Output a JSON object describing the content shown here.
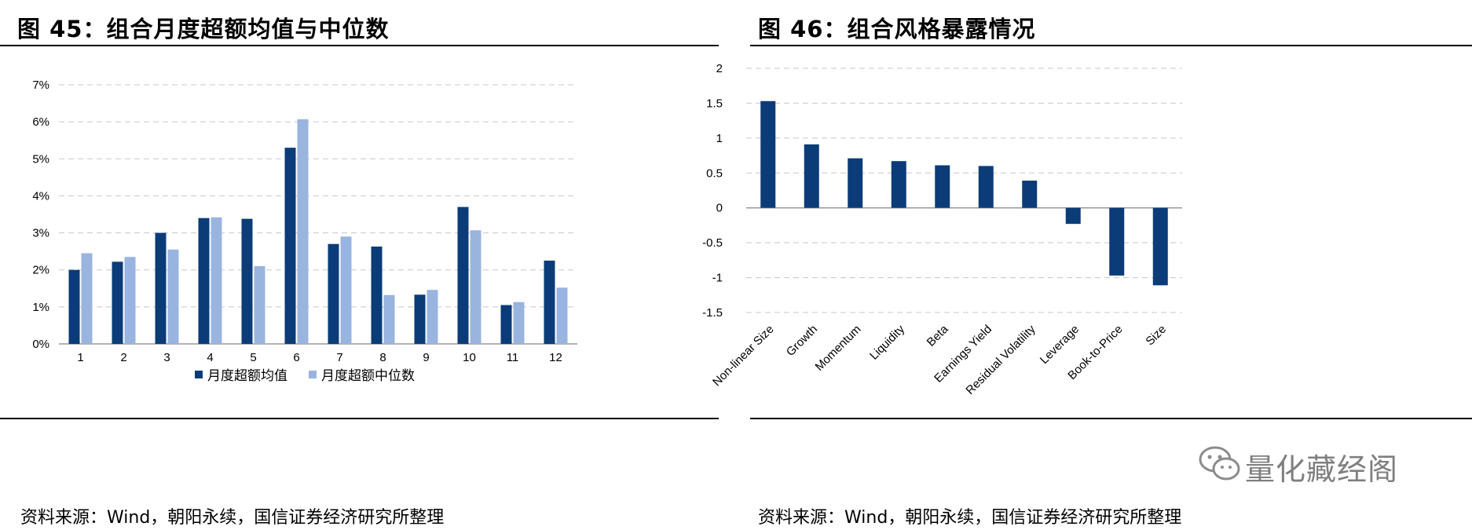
{
  "left": {
    "title": "图 45：组合月度超额均值与中位数",
    "source": "资料来源：Wind，朝阳永续，国信证券经济研究所整理"
  },
  "right": {
    "title": "图 46：组合风格暴露情况",
    "source": "资料来源：Wind，朝阳永续，国信证券经济研究所整理"
  },
  "watermark": {
    "text": "量化藏经阁",
    "icon": "wechat-icon"
  },
  "chart_data": [
    {
      "type": "bar",
      "title": "",
      "xlabel": "",
      "ylabel": "",
      "ylim": [
        0,
        7
      ],
      "yticks": [
        "0%",
        "1%",
        "2%",
        "3%",
        "4%",
        "5%",
        "6%",
        "7%"
      ],
      "categories": [
        "1",
        "2",
        "3",
        "4",
        "5",
        "6",
        "7",
        "8",
        "9",
        "10",
        "11",
        "12"
      ],
      "grid": true,
      "legend": "bottom",
      "series": [
        {
          "name": "月度超额均值",
          "color": "#0b3c78",
          "values": [
            2.0,
            2.22,
            3.0,
            3.4,
            3.38,
            5.3,
            2.7,
            2.63,
            1.33,
            3.7,
            1.05,
            2.25
          ]
        },
        {
          "name": "月度超额中位数",
          "color": "#9ab4e0",
          "values": [
            2.45,
            2.35,
            2.55,
            3.42,
            2.1,
            6.07,
            2.9,
            1.32,
            1.46,
            3.07,
            1.13,
            1.52
          ]
        }
      ]
    },
    {
      "type": "bar",
      "title": "",
      "xlabel": "",
      "ylabel": "",
      "ylim": [
        -1.5,
        2
      ],
      "yticks": [
        "2",
        "1.5",
        "1",
        "0.5",
        "0",
        "-0.5",
        "-1",
        "-1.5"
      ],
      "categories": [
        "Non-linear Size",
        "Growth",
        "Momentum",
        "Liquidity",
        "Beta",
        "Earnings Yield",
        "Residual Volatility",
        "Leverage",
        "Book-to-Price",
        "Size"
      ],
      "grid": true,
      "series": [
        {
          "color": "#0b3c78",
          "values": [
            1.53,
            0.91,
            0.71,
            0.67,
            0.61,
            0.6,
            0.39,
            -0.23,
            -0.97,
            -1.11
          ]
        }
      ]
    }
  ]
}
